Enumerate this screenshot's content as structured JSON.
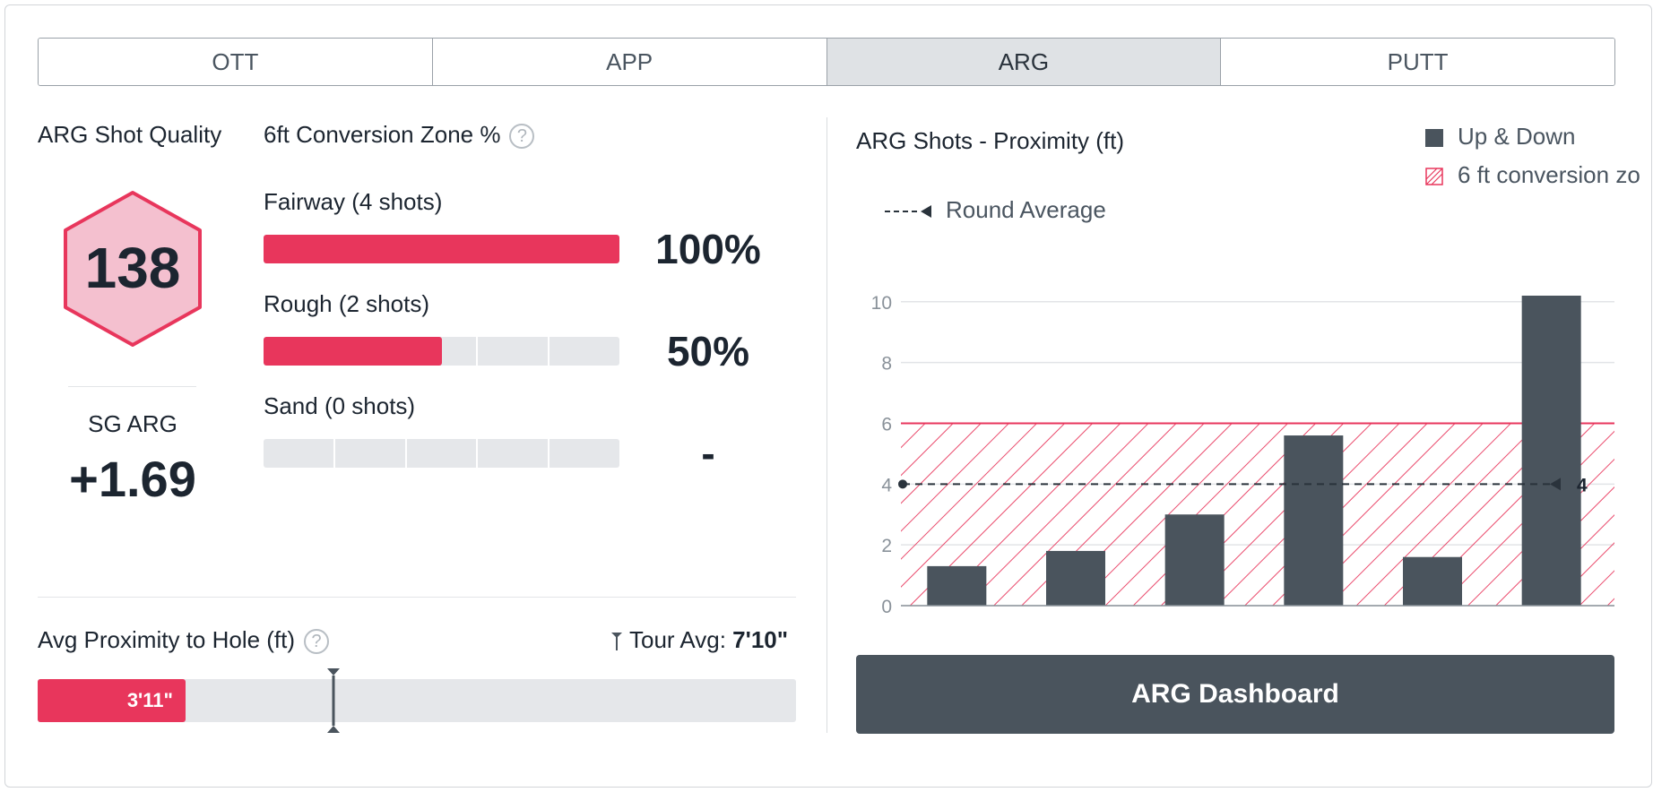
{
  "tabs": [
    {
      "label": "OTT",
      "active": false
    },
    {
      "label": "APP",
      "active": false
    },
    {
      "label": "ARG",
      "active": true
    },
    {
      "label": "PUTT",
      "active": false
    }
  ],
  "shot_quality": {
    "title": "ARG Shot Quality",
    "value": "138"
  },
  "sg": {
    "title": "SG ARG",
    "value": "+1.69"
  },
  "conversion": {
    "title": "6ft Conversion Zone %",
    "help_icon": "question-circle-icon",
    "rows": [
      {
        "label": "Fairway (4 shots)",
        "pct_label": "100%",
        "fill": 1.0,
        "segments": 5
      },
      {
        "label": "Rough (2 shots)",
        "pct_label": "50%",
        "fill": 0.5,
        "segments": 5
      },
      {
        "label": "Sand (0 shots)",
        "pct_label": "-",
        "fill": 0.0,
        "segments": 5
      }
    ]
  },
  "proximity": {
    "title": "Avg Proximity to Hole (ft)",
    "help_icon": "question-circle-icon",
    "tour_label": "Tour Avg:",
    "tour_value": "7'10\"",
    "value_label": "3'11\"",
    "value_fraction": 0.195,
    "tour_fraction": 0.39
  },
  "chart_data": {
    "type": "bar",
    "title": "ARG Shots - Proximity (ft)",
    "legend": [
      {
        "label": "Up & Down",
        "swatch": "solid"
      },
      {
        "label": "6 ft conversion zo",
        "swatch": "hatched"
      }
    ],
    "round_average_label": "Round Average",
    "round_average": 4,
    "round_average_label_value": "4",
    "zone_max": 6,
    "values": [
      1.3,
      1.8,
      3.0,
      5.6,
      1.6,
      10.2
    ],
    "yticks": [
      0,
      2,
      4,
      6,
      8,
      10
    ],
    "ylim": [
      0,
      10.2
    ],
    "grid": true,
    "colors": {
      "bar": "#4a545d",
      "zone": "#e8365c"
    }
  },
  "dashboard_button": {
    "label": "ARG Dashboard"
  },
  "colors": {
    "accent": "#e8365c",
    "dark": "#4a545d",
    "track": "#e5e7ea"
  }
}
